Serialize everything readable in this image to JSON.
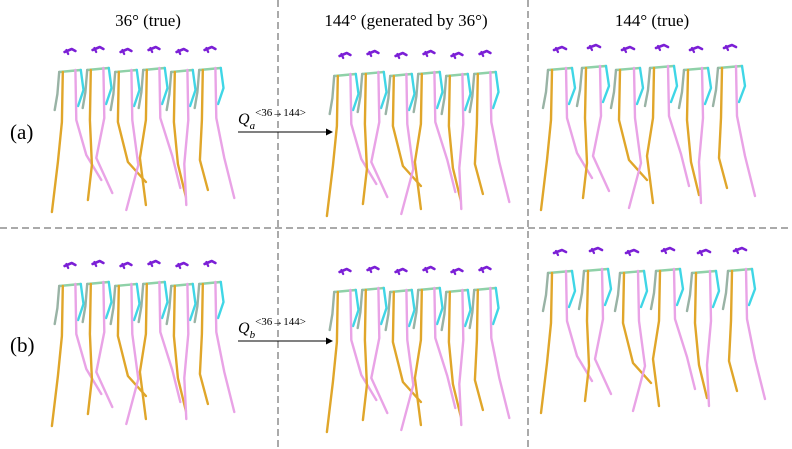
{
  "columns": {
    "left_title": "36° (true)",
    "middle_title": "144° (generated by 36°)",
    "right_title": "144° (true)"
  },
  "rows": [
    {
      "label": "(a)",
      "q_base": "Q",
      "q_sub": "a",
      "q_sup": "<36→144>"
    },
    {
      "label": "(b)",
      "q_base": "Q",
      "q_sub": "b",
      "q_sup": "<36→144>"
    }
  ],
  "colors": {
    "head": "#7b1fd6",
    "shoulders": "#8fd1a8",
    "right_arm": "#3fd6e6",
    "left_arm": "#99b3a5",
    "torso_leg_a": "#e0a62a",
    "torso_leg_b": "#e9a3e6",
    "divider": "#555555"
  }
}
